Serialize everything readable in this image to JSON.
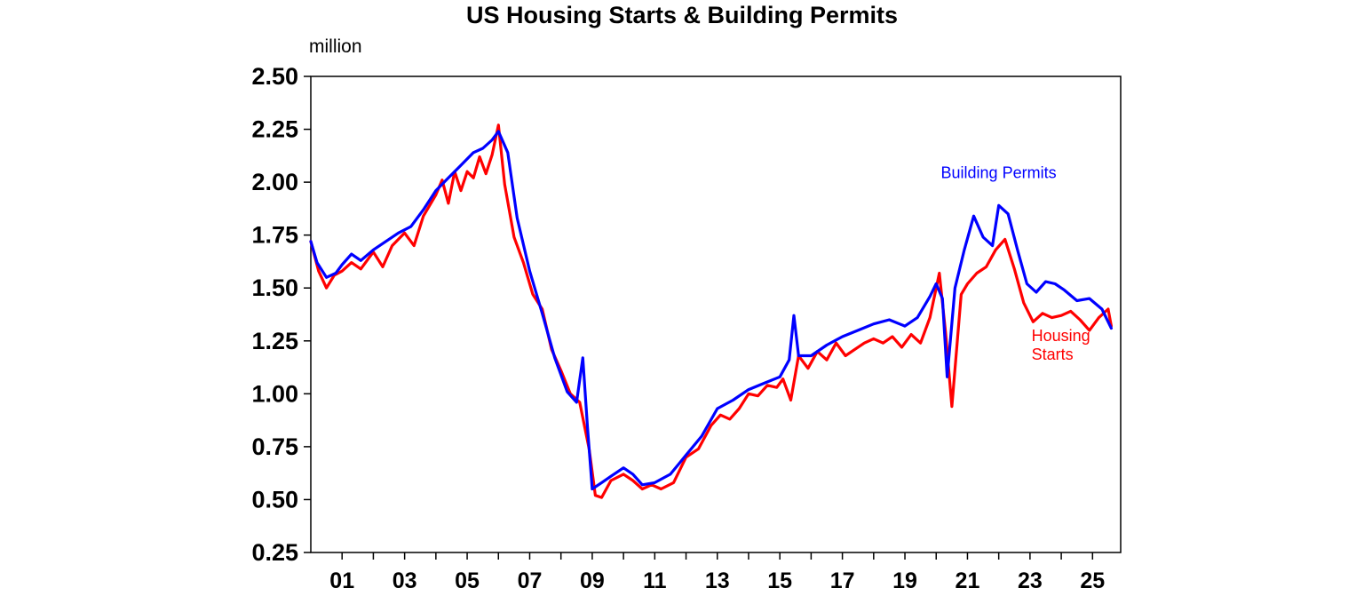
{
  "chart_data": {
    "type": "line",
    "title": "US Housing Starts & Building Permits",
    "ylabel": "million",
    "xlabel": "",
    "xlim": [
      2000.0,
      2025.9
    ],
    "ylim": [
      0.25,
      2.5
    ],
    "yticks": [
      "0.25",
      "0.50",
      "0.75",
      "1.00",
      "1.25",
      "1.50",
      "1.75",
      "2.00",
      "2.25",
      "2.50"
    ],
    "ytick_values": [
      0.25,
      0.5,
      0.75,
      1.0,
      1.25,
      1.5,
      1.75,
      2.0,
      2.25,
      2.5
    ],
    "xticks": [
      "01",
      "03",
      "05",
      "07",
      "09",
      "11",
      "13",
      "15",
      "17",
      "19",
      "21",
      "23",
      "25"
    ],
    "xtick_values": [
      2001,
      2003,
      2005,
      2007,
      2009,
      2011,
      2013,
      2015,
      2017,
      2019,
      2021,
      2023,
      2025
    ],
    "grid": false,
    "legend": "none",
    "annotations": [
      {
        "text": "Building Permits",
        "color": "#0000ff"
      },
      {
        "text": "Housing\nStarts",
        "color": "#ff0000"
      }
    ],
    "series": [
      {
        "name": "Building Permits",
        "color": "#0000ff",
        "x": [
          2000.0,
          2000.2,
          2000.5,
          2000.8,
          2001.0,
          2001.3,
          2001.6,
          2002.0,
          2002.4,
          2002.8,
          2003.2,
          2003.6,
          2004.0,
          2004.4,
          2004.8,
          2005.2,
          2005.5,
          2005.8,
          2006.0,
          2006.3,
          2006.6,
          2007.0,
          2007.4,
          2007.8,
          2008.2,
          2008.5,
          2008.7,
          2008.85,
          2009.0,
          2009.3,
          2009.6,
          2010.0,
          2010.3,
          2010.6,
          2011.0,
          2011.5,
          2012.0,
          2012.5,
          2013.0,
          2013.5,
          2014.0,
          2014.5,
          2015.0,
          2015.3,
          2015.45,
          2015.6,
          2016.0,
          2016.5,
          2017.0,
          2017.5,
          2018.0,
          2018.5,
          2019.0,
          2019.4,
          2019.8,
          2020.0,
          2020.2,
          2020.35,
          2020.6,
          2020.9,
          2021.2,
          2021.5,
          2021.8,
          2022.0,
          2022.3,
          2022.6,
          2022.9,
          2023.2,
          2023.5,
          2023.8,
          2024.1,
          2024.5,
          2024.9,
          2025.3,
          2025.6
        ],
        "values": [
          1.72,
          1.62,
          1.55,
          1.57,
          1.61,
          1.66,
          1.63,
          1.68,
          1.72,
          1.76,
          1.79,
          1.87,
          1.96,
          2.02,
          2.08,
          2.14,
          2.16,
          2.2,
          2.24,
          2.14,
          1.83,
          1.58,
          1.38,
          1.17,
          1.01,
          0.96,
          1.17,
          0.84,
          0.55,
          0.58,
          0.61,
          0.65,
          0.62,
          0.57,
          0.58,
          0.62,
          0.71,
          0.8,
          0.93,
          0.97,
          1.02,
          1.05,
          1.08,
          1.16,
          1.37,
          1.18,
          1.18,
          1.23,
          1.27,
          1.3,
          1.33,
          1.35,
          1.32,
          1.36,
          1.46,
          1.52,
          1.45,
          1.08,
          1.5,
          1.68,
          1.84,
          1.74,
          1.7,
          1.89,
          1.85,
          1.68,
          1.52,
          1.48,
          1.53,
          1.52,
          1.49,
          1.44,
          1.45,
          1.4,
          1.31
        ]
      },
      {
        "name": "Housing Starts",
        "color": "#ff0000",
        "x": [
          2000.0,
          2000.25,
          2000.5,
          2000.75,
          2001.0,
          2001.3,
          2001.6,
          2002.0,
          2002.3,
          2002.6,
          2003.0,
          2003.3,
          2003.6,
          2004.0,
          2004.2,
          2004.4,
          2004.6,
          2004.8,
          2005.0,
          2005.2,
          2005.4,
          2005.6,
          2005.8,
          2006.0,
          2006.2,
          2006.5,
          2006.8,
          2007.1,
          2007.4,
          2007.7,
          2008.0,
          2008.3,
          2008.6,
          2008.9,
          2009.1,
          2009.3,
          2009.6,
          2010.0,
          2010.3,
          2010.6,
          2010.9,
          2011.2,
          2011.6,
          2012.0,
          2012.4,
          2012.8,
          2013.1,
          2013.4,
          2013.7,
          2014.0,
          2014.3,
          2014.6,
          2014.9,
          2015.1,
          2015.35,
          2015.6,
          2015.9,
          2016.2,
          2016.5,
          2016.8,
          2017.1,
          2017.4,
          2017.7,
          2018.0,
          2018.3,
          2018.6,
          2018.9,
          2019.2,
          2019.5,
          2019.8,
          2020.1,
          2020.3,
          2020.5,
          2020.8,
          2021.0,
          2021.3,
          2021.6,
          2021.9,
          2022.2,
          2022.5,
          2022.8,
          2023.1,
          2023.4,
          2023.7,
          2024.0,
          2024.3,
          2024.6,
          2024.9,
          2025.2,
          2025.5,
          2025.6
        ],
        "values": [
          1.72,
          1.58,
          1.5,
          1.56,
          1.58,
          1.62,
          1.59,
          1.67,
          1.6,
          1.7,
          1.76,
          1.7,
          1.84,
          1.94,
          2.01,
          1.9,
          2.05,
          1.96,
          2.05,
          2.02,
          2.12,
          2.04,
          2.13,
          2.27,
          1.99,
          1.74,
          1.62,
          1.47,
          1.4,
          1.21,
          1.11,
          1.0,
          0.96,
          0.74,
          0.52,
          0.51,
          0.59,
          0.62,
          0.59,
          0.55,
          0.57,
          0.55,
          0.58,
          0.7,
          0.74,
          0.85,
          0.9,
          0.88,
          0.93,
          1.0,
          0.99,
          1.04,
          1.03,
          1.07,
          0.97,
          1.18,
          1.12,
          1.2,
          1.16,
          1.24,
          1.18,
          1.21,
          1.24,
          1.26,
          1.24,
          1.27,
          1.22,
          1.28,
          1.24,
          1.36,
          1.57,
          1.29,
          0.94,
          1.47,
          1.52,
          1.57,
          1.6,
          1.68,
          1.73,
          1.59,
          1.43,
          1.34,
          1.38,
          1.36,
          1.37,
          1.39,
          1.35,
          1.3,
          1.36,
          1.4,
          1.32
        ]
      }
    ]
  }
}
